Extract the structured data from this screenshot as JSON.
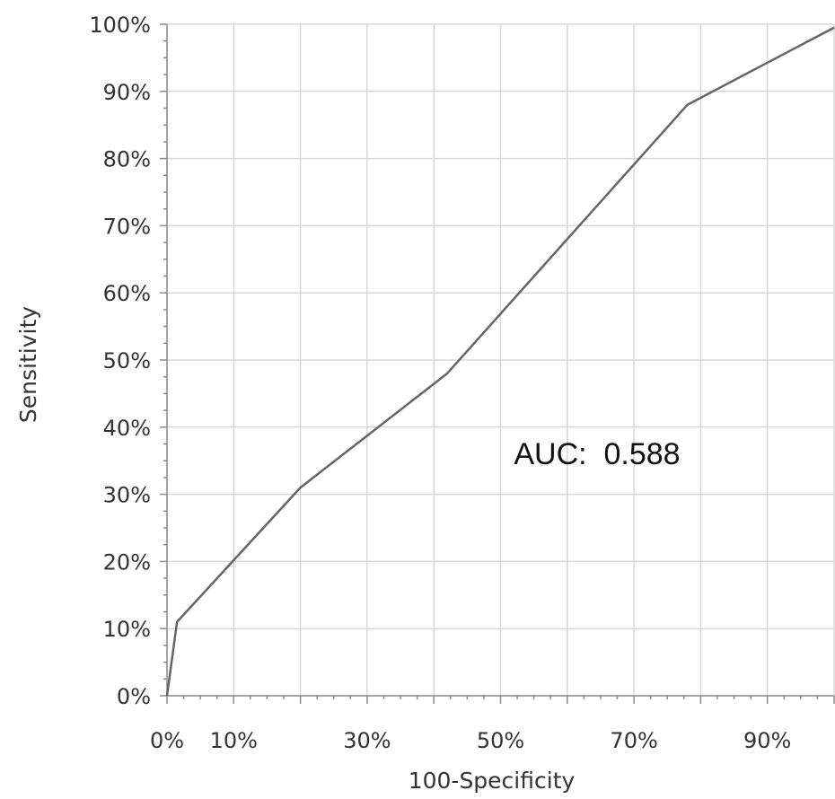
{
  "chart_data": {
    "type": "line",
    "xlabel": "100-Specificity",
    "ylabel": "Sensitivity",
    "xlim": [
      0,
      100
    ],
    "ylim": [
      0,
      100
    ],
    "x_ticks": [
      0,
      10,
      30,
      50,
      70,
      90
    ],
    "x_tick_labels": [
      "0%",
      "10%",
      "30%",
      "50%",
      "70%",
      "90%"
    ],
    "x_gridlines": [
      0,
      10,
      20,
      30,
      40,
      50,
      60,
      70,
      80,
      90,
      100
    ],
    "y_ticks": [
      0,
      10,
      20,
      30,
      40,
      50,
      60,
      70,
      80,
      90,
      100
    ],
    "y_tick_labels": [
      "0%",
      "10%",
      "20%",
      "30%",
      "40%",
      "50%",
      "60%",
      "70%",
      "80%",
      "90%",
      "100%"
    ],
    "grid": true,
    "series": [
      {
        "x": [
          0,
          1.5,
          20,
          42,
          78,
          100
        ],
        "y": [
          0,
          11,
          31,
          48,
          88,
          99.5
        ],
        "color": "#666666"
      }
    ],
    "annotations": [
      {
        "text": "AUC:  0.588",
        "x": 52,
        "y": 34.5
      }
    ]
  }
}
